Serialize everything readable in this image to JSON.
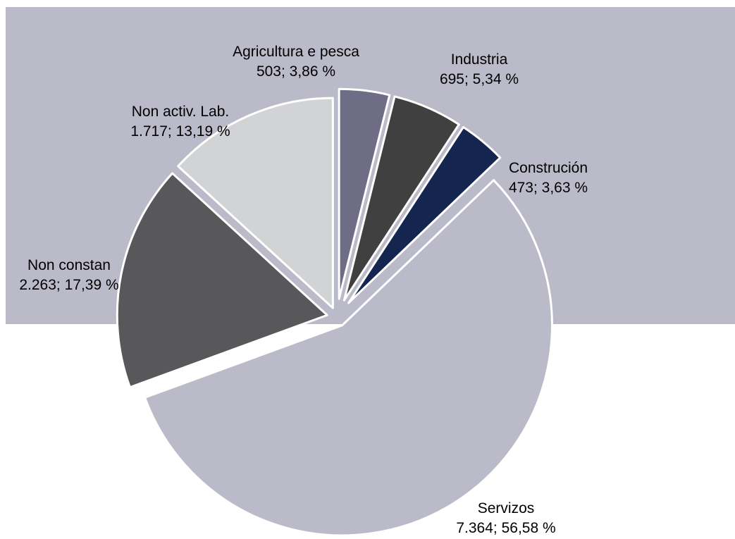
{
  "chart_data": {
    "type": "pie",
    "title": "",
    "unit": "%",
    "slices": [
      {
        "label": "Agricultura e pesca",
        "value": 503,
        "percent": 3.86,
        "value_text": "503; 3,86 %",
        "color": "#6f6d85"
      },
      {
        "label": "Industria",
        "value": 695,
        "percent": 5.34,
        "value_text": "695; 5,34 %",
        "color": "#404040"
      },
      {
        "label": "Construción",
        "value": 473,
        "percent": 3.63,
        "value_text": "473; 3,63 %",
        "color": "#14254f"
      },
      {
        "label": "Servizos",
        "value": 7364,
        "percent": 56.58,
        "value_text": "7.364; 56,58 %",
        "color": "#bbbac9"
      },
      {
        "label": "Non constan",
        "value": 2263,
        "percent": 17.39,
        "value_text": "2.263; 17,39 %",
        "color": "#58585a"
      },
      {
        "label": "Non activ. Lab.",
        "value": 1717,
        "percent": 13.19,
        "value_text": "1.717; 13,19 %",
        "color": "#d2d3d5"
      }
    ],
    "background_color": "#bbbac9",
    "border_color": "#ffffff"
  }
}
